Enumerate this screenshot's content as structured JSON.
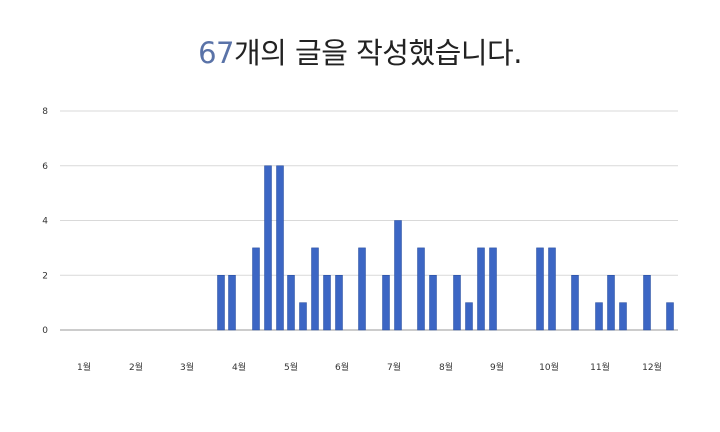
{
  "title": {
    "count": "67",
    "text": "개의 글을 작성했습니다."
  },
  "colors": {
    "bar": "#3c66c4",
    "bar_edge": "#254a9a",
    "grid": "#d9d9d9",
    "count": "#5a73a8"
  },
  "chart_data": {
    "type": "bar",
    "title": "67개의 글을 작성했습니다.",
    "xlabel": "",
    "ylabel": "",
    "ylim": [
      0,
      8
    ],
    "yticks": [
      "0",
      "2",
      "4",
      "6",
      "8"
    ],
    "month_labels": [
      "1월",
      "2월",
      "3월",
      "4월",
      "5월",
      "6월",
      "7월",
      "8월",
      "9월",
      "10월",
      "11월",
      "12월"
    ],
    "grid": true,
    "legend": "none",
    "values": [
      2,
      2,
      3,
      6,
      6,
      2,
      1,
      3,
      2,
      2,
      3,
      2,
      4,
      3,
      2,
      2,
      1,
      3,
      3,
      3,
      3,
      2,
      1,
      2,
      1,
      2,
      1
    ]
  }
}
